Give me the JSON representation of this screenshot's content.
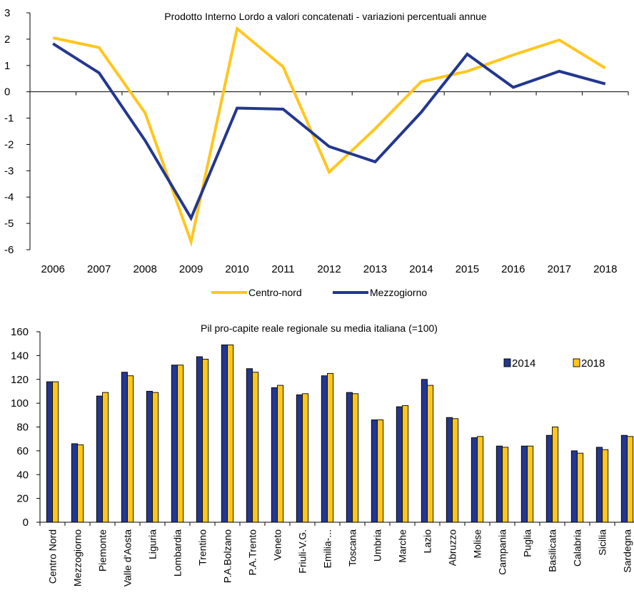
{
  "chart_data": [
    {
      "type": "line",
      "title": "Prodotto Interno Lordo a valori concatenati - variazioni percentuali annue",
      "x": [
        "2006",
        "2007",
        "2008",
        "2009",
        "2010",
        "2011",
        "2012",
        "2013",
        "2014",
        "2015",
        "2016",
        "2017",
        "2018"
      ],
      "ylim": [
        -6,
        3
      ],
      "yticks": [
        3,
        2,
        1,
        0,
        -1,
        -2,
        -3,
        -4,
        -5,
        -6
      ],
      "grid": false,
      "legend": "bottom",
      "series": [
        {
          "name": "Centro-nord",
          "color": "#FFC61E",
          "values": [
            2.05,
            1.68,
            -0.8,
            -5.7,
            2.4,
            0.95,
            -3.05,
            -1.4,
            0.38,
            0.78,
            1.4,
            1.97,
            0.9
          ]
        },
        {
          "name": "Mezzogiorno",
          "color": "#23378F",
          "values": [
            1.83,
            0.72,
            -1.85,
            -4.8,
            -0.62,
            -0.66,
            -2.08,
            -2.66,
            -0.78,
            1.43,
            0.17,
            0.78,
            0.3
          ]
        }
      ]
    },
    {
      "type": "bar",
      "title": "Pil pro-capite reale regionale su media italiana (=100)",
      "categories": [
        "Centro Nord",
        "Mezzogiorno",
        "Piemonte",
        "Valle d'Aosta",
        "Liguria",
        "Lombardia",
        "Trentino",
        "P.A.Bolzano",
        "P.A.Trento",
        "Veneto",
        "Friuli-V.G.",
        "Emilia-...",
        "Toscana",
        "Umbria",
        "Marche",
        "Lazio",
        "Abruzzo",
        "Molise",
        "Campania",
        "Puglia",
        "Basilicata",
        "Calabria",
        "Sicilia",
        "Sardegna"
      ],
      "ylim": [
        0,
        160
      ],
      "yticks": [
        160,
        140,
        120,
        100,
        80,
        60,
        40,
        20,
        0
      ],
      "grid": false,
      "legend": "top-right",
      "series": [
        {
          "name": "2014",
          "color": "#23378F",
          "values": [
            118,
            66,
            106,
            126,
            110,
            132,
            139,
            149,
            129,
            113,
            107,
            123,
            109,
            86,
            97,
            120,
            88,
            71,
            64,
            64,
            73,
            60,
            63,
            73
          ]
        },
        {
          "name": "2018",
          "color": "#FFC61E",
          "values": [
            118,
            65,
            109,
            123,
            109,
            132,
            137,
            149,
            126,
            115,
            108,
            125,
            108,
            86,
            98,
            115,
            87,
            72,
            63,
            64,
            80,
            58,
            61,
            72
          ]
        }
      ]
    }
  ]
}
